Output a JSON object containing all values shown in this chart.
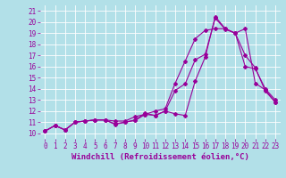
{
  "background_color": "#b2e0e8",
  "grid_color": "#ffffff",
  "line_color": "#990099",
  "xlabel": "Windchill (Refroidissement éolien,°C)",
  "xlabel_fontsize": 6.5,
  "ylabel_ticks": [
    10,
    11,
    12,
    13,
    14,
    15,
    16,
    17,
    18,
    19,
    20,
    21
  ],
  "xlim": [
    -0.5,
    23.5
  ],
  "ylim": [
    9.5,
    21.5
  ],
  "line1_x": [
    0,
    1,
    2,
    3,
    4,
    5,
    6,
    7,
    8,
    9,
    10,
    11,
    12,
    13,
    14,
    15,
    16,
    17,
    18,
    19,
    20,
    21,
    22,
    23
  ],
  "line1_y": [
    10.2,
    10.7,
    10.3,
    11.0,
    11.1,
    11.2,
    11.2,
    10.8,
    11.0,
    11.15,
    11.7,
    11.6,
    12.0,
    13.85,
    14.45,
    16.6,
    17.1,
    20.35,
    19.35,
    19.0,
    17.0,
    15.9,
    13.8,
    12.8
  ],
  "line2_x": [
    0,
    1,
    2,
    3,
    4,
    5,
    6,
    7,
    8,
    9,
    10,
    11,
    12,
    13,
    14,
    15,
    16,
    17,
    18,
    19,
    20,
    21,
    22,
    23
  ],
  "line2_y": [
    10.2,
    10.7,
    10.3,
    11.0,
    11.1,
    11.2,
    11.2,
    11.1,
    11.1,
    11.5,
    11.7,
    12.0,
    12.2,
    14.5,
    16.5,
    18.5,
    19.25,
    19.4,
    19.4,
    19.0,
    16.0,
    15.8,
    14.0,
    13.0
  ],
  "line3_x": [
    0,
    1,
    2,
    3,
    4,
    5,
    6,
    7,
    8,
    9,
    10,
    11,
    12,
    13,
    14,
    15,
    16,
    17,
    18,
    19,
    20,
    21,
    22,
    23
  ],
  "line3_y": [
    10.2,
    10.7,
    10.3,
    11.0,
    11.1,
    11.2,
    11.2,
    10.85,
    11.0,
    11.2,
    11.8,
    11.6,
    12.0,
    11.75,
    11.6,
    14.7,
    16.85,
    20.5,
    19.4,
    19.0,
    19.4,
    14.5,
    13.9,
    12.8
  ],
  "xtick_labels": [
    "0",
    "1",
    "2",
    "3",
    "4",
    "5",
    "6",
    "7",
    "8",
    "9",
    "10",
    "11",
    "12",
    "13",
    "14",
    "15",
    "16",
    "17",
    "18",
    "19",
    "20",
    "21",
    "22",
    "23"
  ],
  "tick_fontsize": 5.5,
  "marker": "D",
  "marker_size": 2.0,
  "linewidth": 0.8
}
